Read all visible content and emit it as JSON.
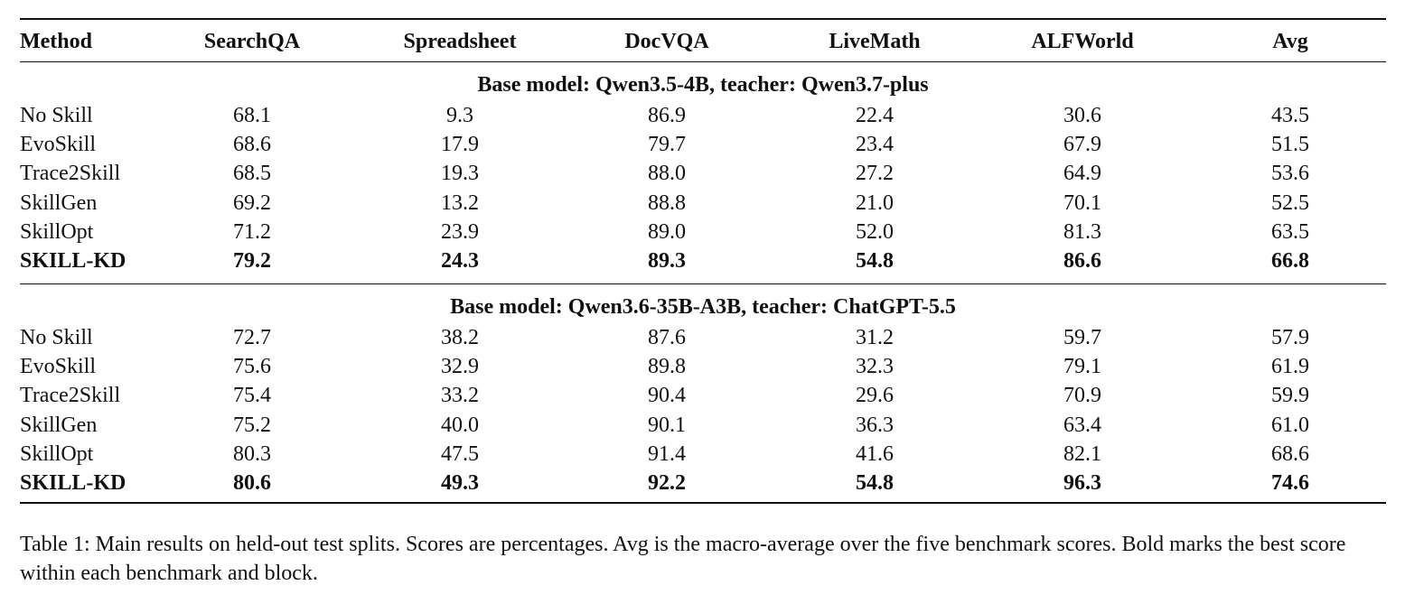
{
  "table": {
    "columns": [
      "Method",
      "SearchQA",
      "Spreadsheet",
      "DocVQA",
      "LiveMath",
      "ALFWorld",
      "Avg"
    ],
    "blocks": [
      {
        "title": "Base model: Qwen3.5-4B, teacher: Qwen3.7-plus",
        "rows": [
          {
            "method": "No Skill",
            "values": [
              "68.1",
              "9.3",
              "86.9",
              "22.4",
              "30.6",
              "43.5"
            ],
            "bold": false
          },
          {
            "method": "EvoSkill",
            "values": [
              "68.6",
              "17.9",
              "79.7",
              "23.4",
              "67.9",
              "51.5"
            ],
            "bold": false
          },
          {
            "method": "Trace2Skill",
            "values": [
              "68.5",
              "19.3",
              "88.0",
              "27.2",
              "64.9",
              "53.6"
            ],
            "bold": false
          },
          {
            "method": "SkillGen",
            "values": [
              "69.2",
              "13.2",
              "88.8",
              "21.0",
              "70.1",
              "52.5"
            ],
            "bold": false
          },
          {
            "method": "SkillOpt",
            "values": [
              "71.2",
              "23.9",
              "89.0",
              "52.0",
              "81.3",
              "63.5"
            ],
            "bold": false
          },
          {
            "method": "SKILL-KD",
            "values": [
              "79.2",
              "24.3",
              "89.3",
              "54.8",
              "86.6",
              "66.8"
            ],
            "bold": true
          }
        ]
      },
      {
        "title": "Base model: Qwen3.6-35B-A3B, teacher: ChatGPT-5.5",
        "rows": [
          {
            "method": "No Skill",
            "values": [
              "72.7",
              "38.2",
              "87.6",
              "31.2",
              "59.7",
              "57.9"
            ],
            "bold": false
          },
          {
            "method": "EvoSkill",
            "values": [
              "75.6",
              "32.9",
              "89.8",
              "32.3",
              "79.1",
              "61.9"
            ],
            "bold": false
          },
          {
            "method": "Trace2Skill",
            "values": [
              "75.4",
              "33.2",
              "90.4",
              "29.6",
              "70.9",
              "59.9"
            ],
            "bold": false
          },
          {
            "method": "SkillGen",
            "values": [
              "75.2",
              "40.0",
              "90.1",
              "36.3",
              "63.4",
              "61.0"
            ],
            "bold": false
          },
          {
            "method": "SkillOpt",
            "values": [
              "80.3",
              "47.5",
              "91.4",
              "41.6",
              "82.1",
              "68.6"
            ],
            "bold": false
          },
          {
            "method": "SKILL-KD",
            "values": [
              "80.6",
              "49.3",
              "92.2",
              "54.8",
              "96.3",
              "74.6"
            ],
            "bold": true
          }
        ]
      }
    ]
  },
  "caption": "Table 1: Main results on held-out test splits. Scores are percentages. Avg is the macro-average over the five benchmark scores. Bold marks the best score within each benchmark and block."
}
